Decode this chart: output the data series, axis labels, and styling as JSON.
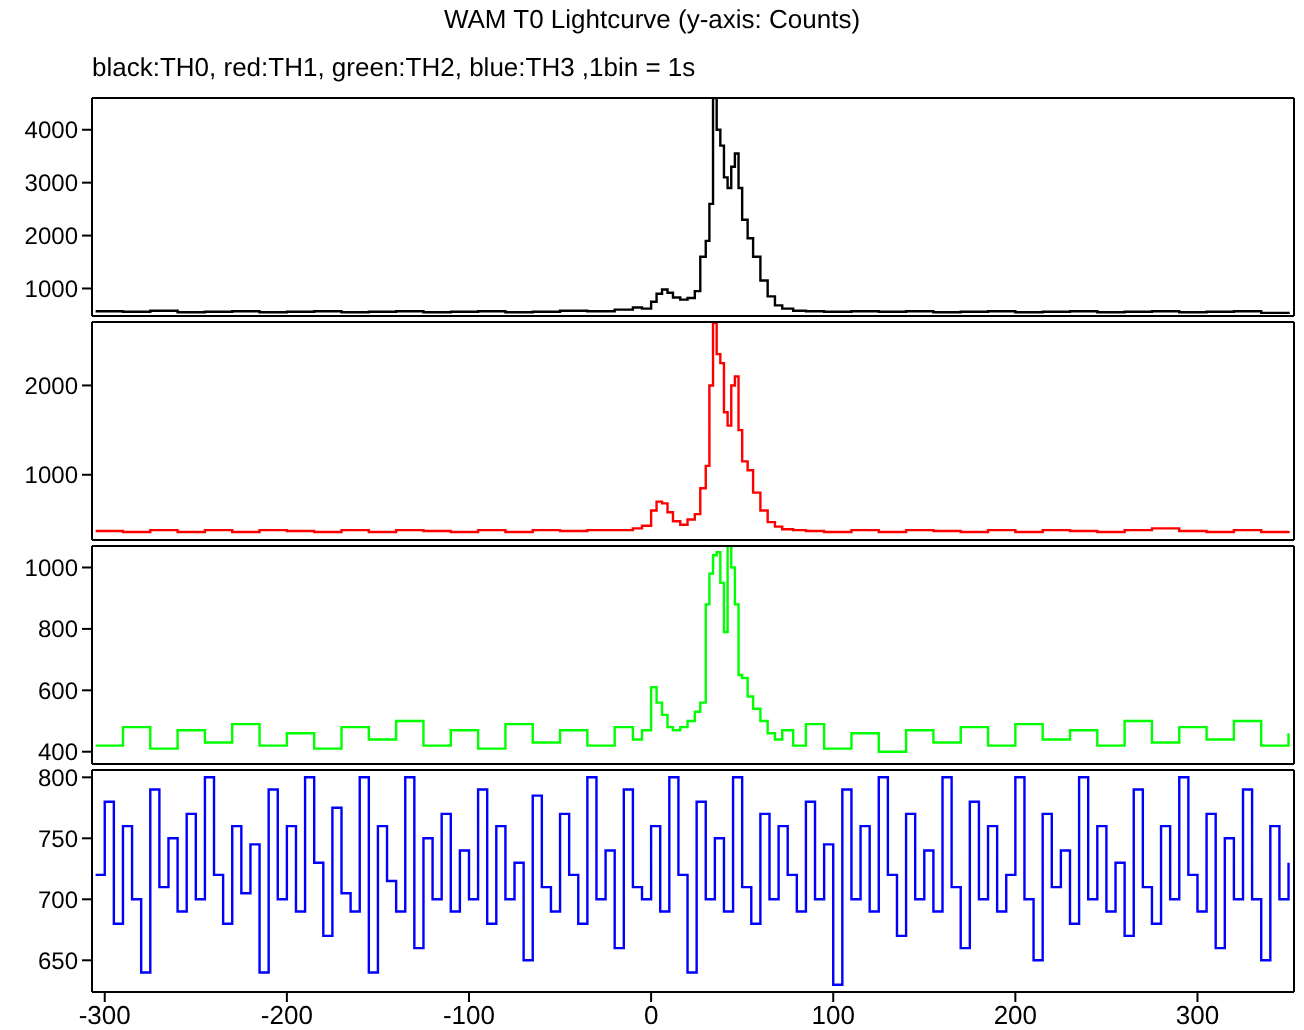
{
  "chart_data": [
    {
      "type": "step",
      "title": "WAM T0 Lightcurve (y-axis: Counts)",
      "subtitle": "black:TH0, red:TH1, green:TH2, blue:TH3 ,1bin = 1s",
      "x": [
        -305,
        -290,
        -275,
        -260,
        -245,
        -230,
        -215,
        -200,
        -185,
        -170,
        -155,
        -140,
        -125,
        -110,
        -95,
        -80,
        -65,
        -50,
        -35,
        -20,
        -10,
        -5,
        0,
        3,
        6,
        9,
        12,
        16,
        20,
        24,
        27,
        30,
        32,
        34,
        36,
        38,
        40,
        42,
        44,
        46,
        48,
        50,
        53,
        56,
        60,
        64,
        68,
        72,
        78,
        85,
        95,
        110,
        125,
        140,
        155,
        170,
        185,
        200,
        215,
        230,
        245,
        260,
        275,
        290,
        305,
        320,
        335,
        350
      ],
      "series": [
        {
          "color": "#000000",
          "values": [
            570,
            560,
            580,
            550,
            560,
            570,
            550,
            560,
            570,
            550,
            560,
            570,
            550,
            560,
            570,
            550,
            560,
            580,
            570,
            600,
            640,
            620,
            750,
            900,
            980,
            920,
            830,
            790,
            820,
            950,
            1600,
            1900,
            2600,
            4600,
            4000,
            3700,
            3100,
            2900,
            3300,
            3550,
            2900,
            2300,
            1950,
            1600,
            1150,
            850,
            680,
            620,
            580,
            570,
            560,
            570,
            560,
            570,
            550,
            560,
            570,
            550,
            560,
            570,
            550,
            560,
            570,
            550,
            560,
            570,
            540,
            560
          ]
        }
      ],
      "xlim": [
        -307,
        353
      ],
      "xticks": [
        -300,
        -200,
        -100,
        0,
        100,
        200,
        300
      ],
      "ylim": [
        480,
        4600
      ],
      "yticks": [
        1000,
        2000,
        3000,
        4000
      ],
      "tick_labels": "y",
      "grid": false
    },
    {
      "type": "step",
      "x": [
        -305,
        -290,
        -275,
        -260,
        -245,
        -230,
        -215,
        -200,
        -185,
        -170,
        -155,
        -140,
        -125,
        -110,
        -95,
        -80,
        -65,
        -50,
        -35,
        -20,
        -10,
        -5,
        0,
        3,
        6,
        9,
        12,
        16,
        20,
        24,
        27,
        30,
        32,
        34,
        36,
        38,
        40,
        42,
        44,
        46,
        48,
        50,
        53,
        56,
        60,
        64,
        68,
        72,
        78,
        85,
        95,
        110,
        125,
        140,
        155,
        170,
        185,
        200,
        215,
        230,
        245,
        260,
        275,
        290,
        305,
        320,
        335,
        350
      ],
      "series": [
        {
          "color": "#ff0000",
          "values": [
            370,
            360,
            380,
            360,
            380,
            360,
            380,
            370,
            360,
            380,
            360,
            380,
            370,
            360,
            380,
            360,
            380,
            370,
            380,
            380,
            400,
            430,
            600,
            700,
            680,
            580,
            480,
            440,
            500,
            560,
            850,
            1100,
            2000,
            2700,
            2350,
            2250,
            1700,
            1550,
            2000,
            2100,
            1500,
            1150,
            1050,
            800,
            600,
            470,
            420,
            390,
            380,
            370,
            360,
            380,
            360,
            380,
            370,
            360,
            380,
            360,
            380,
            370,
            360,
            380,
            400,
            370,
            360,
            380,
            360,
            370
          ]
        }
      ],
      "xlim": [
        -307,
        353
      ],
      "xticks": [
        -300,
        -200,
        -100,
        0,
        100,
        200,
        300
      ],
      "ylim": [
        270,
        2710
      ],
      "yticks": [
        1000,
        2000
      ],
      "tick_labels": "y",
      "grid": false
    },
    {
      "type": "step",
      "x": [
        -305,
        -290,
        -275,
        -260,
        -245,
        -230,
        -215,
        -200,
        -185,
        -170,
        -155,
        -140,
        -125,
        -110,
        -95,
        -80,
        -65,
        -50,
        -35,
        -20,
        -10,
        -5,
        0,
        3,
        6,
        9,
        12,
        16,
        20,
        24,
        27,
        30,
        32,
        34,
        36,
        38,
        40,
        42,
        44,
        46,
        48,
        50,
        53,
        56,
        60,
        64,
        68,
        72,
        78,
        85,
        95,
        110,
        125,
        140,
        155,
        170,
        185,
        200,
        215,
        230,
        245,
        260,
        275,
        290,
        305,
        320,
        335,
        350
      ],
      "series": [
        {
          "color": "#00ff00",
          "values": [
            420,
            480,
            410,
            470,
            430,
            490,
            420,
            460,
            410,
            480,
            440,
            500,
            420,
            470,
            410,
            490,
            430,
            470,
            420,
            480,
            440,
            470,
            610,
            560,
            520,
            480,
            470,
            480,
            500,
            530,
            560,
            880,
            980,
            1040,
            1050,
            950,
            790,
            1070,
            1000,
            880,
            650,
            640,
            580,
            540,
            500,
            460,
            440,
            470,
            420,
            490,
            410,
            460,
            400,
            470,
            430,
            480,
            420,
            490,
            440,
            470,
            420,
            500,
            430,
            480,
            440,
            500,
            420,
            460
          ]
        }
      ],
      "xlim": [
        -307,
        353
      ],
      "xticks": [
        -300,
        -200,
        -100,
        0,
        100,
        200,
        300
      ],
      "ylim": [
        360,
        1070
      ],
      "yticks": [
        400,
        600,
        800,
        1000
      ],
      "tick_labels": "y",
      "grid": false
    },
    {
      "type": "step",
      "x": [
        -305,
        -300,
        -295,
        -290,
        -285,
        -280,
        -275,
        -270,
        -265,
        -260,
        -255,
        -250,
        -245,
        -240,
        -235,
        -230,
        -225,
        -220,
        -215,
        -210,
        -205,
        -200,
        -195,
        -190,
        -185,
        -180,
        -175,
        -170,
        -165,
        -160,
        -155,
        -150,
        -145,
        -140,
        -135,
        -130,
        -125,
        -120,
        -115,
        -110,
        -105,
        -100,
        -95,
        -90,
        -85,
        -80,
        -75,
        -70,
        -65,
        -60,
        -55,
        -50,
        -45,
        -40,
        -35,
        -30,
        -25,
        -20,
        -15,
        -10,
        -5,
        0,
        5,
        10,
        15,
        20,
        25,
        30,
        35,
        40,
        45,
        50,
        55,
        60,
        65,
        70,
        75,
        80,
        85,
        90,
        95,
        100,
        105,
        110,
        115,
        120,
        125,
        130,
        135,
        140,
        145,
        150,
        155,
        160,
        165,
        170,
        175,
        180,
        185,
        190,
        195,
        200,
        205,
        210,
        215,
        220,
        225,
        230,
        235,
        240,
        245,
        250,
        255,
        260,
        265,
        270,
        275,
        280,
        285,
        290,
        295,
        300,
        305,
        310,
        315,
        320,
        325,
        330,
        335,
        340,
        345,
        350
      ],
      "series": [
        {
          "color": "#0000ff",
          "values": [
            720,
            780,
            680,
            760,
            700,
            640,
            790,
            710,
            750,
            690,
            770,
            700,
            800,
            720,
            680,
            760,
            705,
            745,
            640,
            790,
            700,
            760,
            690,
            800,
            730,
            670,
            775,
            705,
            690,
            800,
            640,
            760,
            715,
            690,
            800,
            660,
            750,
            700,
            770,
            690,
            740,
            700,
            790,
            680,
            760,
            700,
            730,
            650,
            785,
            710,
            690,
            770,
            720,
            680,
            800,
            700,
            740,
            660,
            790,
            710,
            700,
            760,
            690,
            800,
            720,
            640,
            780,
            700,
            750,
            690,
            800,
            710,
            680,
            770,
            700,
            760,
            720,
            690,
            780,
            700,
            745,
            630,
            790,
            700,
            760,
            690,
            800,
            720,
            670,
            770,
            700,
            740,
            690,
            800,
            710,
            660,
            780,
            700,
            760,
            690,
            720,
            800,
            700,
            650,
            770,
            710,
            740,
            680,
            800,
            700,
            760,
            690,
            730,
            670,
            790,
            710,
            680,
            760,
            700,
            800,
            720,
            690,
            770,
            660,
            750,
            700,
            790,
            700,
            650,
            760,
            700,
            730
          ]
        }
      ],
      "xlim": [
        -307,
        353
      ],
      "xticks": [
        -300,
        -200,
        -100,
        0,
        100,
        200,
        300
      ],
      "ylim": [
        624,
        806
      ],
      "yticks": [
        650,
        700,
        750,
        800
      ],
      "grid": false
    }
  ]
}
